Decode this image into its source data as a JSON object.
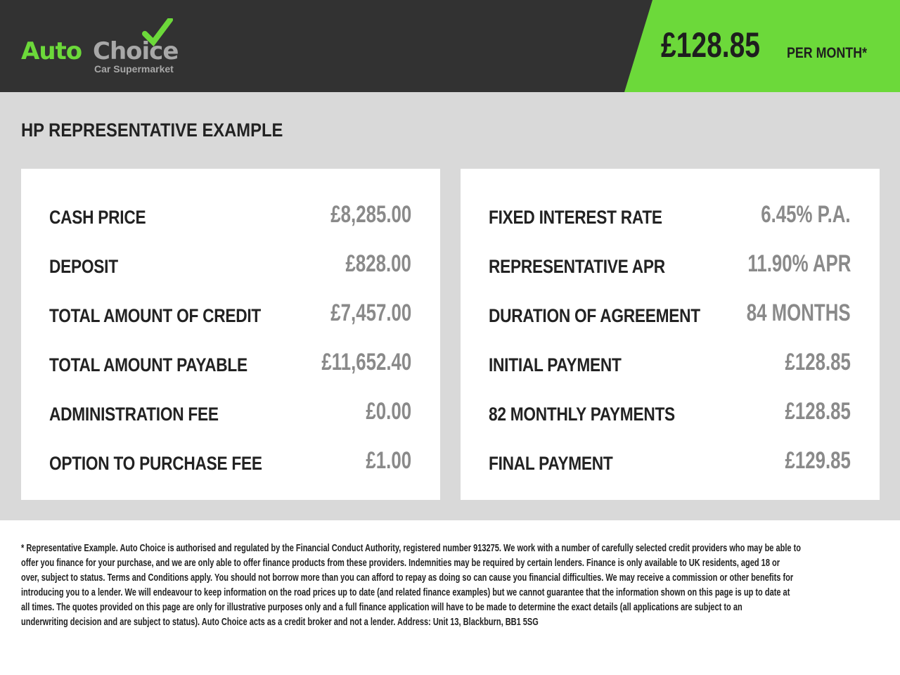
{
  "brand": {
    "name_part1": "Auto",
    "name_part2": "Choice",
    "tagline": "Car Supermarket",
    "colors": {
      "green": "#6cd93a",
      "dark": "#323232",
      "grey": "#a8a8a8"
    }
  },
  "header": {
    "monthly_price": "£128.85",
    "per_month_label": "PER MONTH*"
  },
  "section_title": "HP REPRESENTATIVE EXAMPLE",
  "left_rows": [
    {
      "label": "CASH PRICE",
      "value": "£8,285.00"
    },
    {
      "label": "DEPOSIT",
      "value": "£828.00"
    },
    {
      "label": "TOTAL AMOUNT OF CREDIT",
      "value": "£7,457.00"
    },
    {
      "label": "TOTAL AMOUNT PAYABLE",
      "value": "£11,652.40"
    },
    {
      "label": "ADMINISTRATION FEE",
      "value": "£0.00"
    },
    {
      "label": "OPTION TO PURCHASE FEE",
      "value": "£1.00"
    }
  ],
  "right_rows": [
    {
      "label": "FIXED INTEREST RATE",
      "value": "6.45% P.A."
    },
    {
      "label": "REPRESENTATIVE APR",
      "value": "11.90% APR"
    },
    {
      "label": "DURATION OF AGREEMENT",
      "value": "84 MONTHS"
    },
    {
      "label": "INITIAL PAYMENT",
      "value": "£128.85"
    },
    {
      "label": "82 MONTHLY PAYMENTS",
      "value": "£128.85"
    },
    {
      "label": "FINAL PAYMENT",
      "value": "£129.85"
    }
  ],
  "disclaimer_lines": [
    "* Representative Example. Auto Choice is authorised and regulated by the Financial Conduct Authority, registered number 913275. We work with a number of carefully selected credit providers who may be able to",
    "offer you finance for your purchase, and we are only able to offer finance products from these providers. Indemnities may be required by certain lenders. Finance is only available to UK residents, aged 18 or",
    "over, subject to status. Terms and Conditions apply. You should not borrow more than you can afford to repay as doing so can cause you financial difficulties. We may receive a commission or other benefits for",
    "introducing you to a lender. We will endeavour to keep information on the road prices up to date (and related finance examples) but we cannot guarantee that the information shown on this page is up to date at",
    "all times. The quotes provided on this page are only for illustrative purposes only and a full finance application will have to be made to determine the exact details (all applications are subject to an",
    "underwriting decision and are subject to status). Auto Choice acts as a credit broker and not a lender. Address: Unit 13, Blackburn, BB1 5SG"
  ]
}
